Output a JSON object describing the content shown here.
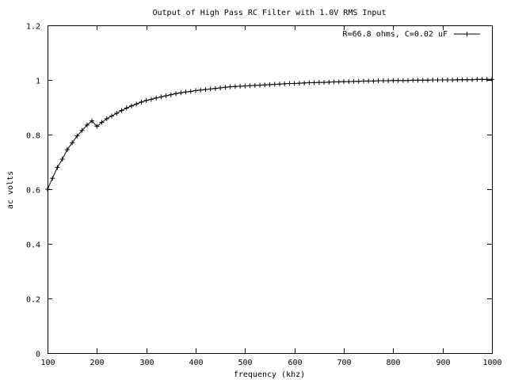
{
  "chart_data": {
    "type": "line",
    "title": "Output of High Pass RC Filter with 1.0V RMS Input",
    "xlabel": "frequency (khz)",
    "ylabel": "ac volts",
    "xlim": [
      100,
      1000
    ],
    "ylim": [
      0,
      1.2
    ],
    "grid": false,
    "legend": "top-right",
    "x_ticks": [
      "100",
      "200",
      "300",
      "400",
      "500",
      "600",
      "700",
      "800",
      "900",
      "1000"
    ],
    "y_ticks": [
      "0",
      "0.2",
      "0.4",
      "0.6",
      "0.8",
      "1",
      "1.2"
    ],
    "series": [
      {
        "name": "R=66.8 ohms, C=0.02 uF",
        "x": [
          100,
          110,
          120,
          130,
          140,
          150,
          160,
          170,
          180,
          190,
          200,
          210,
          220,
          230,
          240,
          250,
          260,
          270,
          280,
          290,
          300,
          310,
          320,
          330,
          340,
          350,
          360,
          370,
          380,
          390,
          400,
          410,
          420,
          430,
          440,
          450,
          460,
          470,
          480,
          490,
          500,
          510,
          520,
          530,
          540,
          550,
          560,
          570,
          580,
          590,
          600,
          610,
          620,
          630,
          640,
          650,
          660,
          670,
          680,
          690,
          700,
          710,
          720,
          730,
          740,
          750,
          760,
          770,
          780,
          790,
          800,
          810,
          820,
          830,
          840,
          850,
          860,
          870,
          880,
          890,
          900,
          910,
          920,
          930,
          940,
          950,
          960,
          970,
          980,
          990,
          1000
        ],
        "y": [
          0.6,
          0.64,
          0.68,
          0.71,
          0.745,
          0.77,
          0.795,
          0.815,
          0.835,
          0.85,
          0.83,
          0.845,
          0.858,
          0.868,
          0.878,
          0.888,
          0.897,
          0.905,
          0.912,
          0.919,
          0.925,
          0.929,
          0.934,
          0.938,
          0.942,
          0.946,
          0.95,
          0.953,
          0.956,
          0.958,
          0.961,
          0.963,
          0.965,
          0.967,
          0.969,
          0.971,
          0.973,
          0.975,
          0.976,
          0.977,
          0.978,
          0.979,
          0.98,
          0.981,
          0.982,
          0.983,
          0.984,
          0.985,
          0.986,
          0.987,
          0.987,
          0.988,
          0.989,
          0.99,
          0.99,
          0.991,
          0.991,
          0.992,
          0.993,
          0.993,
          0.994,
          0.994,
          0.995,
          0.995,
          0.996,
          0.996,
          0.996,
          0.997,
          0.997,
          0.997,
          0.998,
          0.998,
          0.998,
          0.998,
          0.999,
          0.999,
          0.999,
          0.999,
          1.0,
          1.0,
          1.0,
          1.0,
          1.0,
          1.001,
          1.001,
          1.001,
          1.001,
          1.002,
          1.002,
          1.002,
          1.002
        ]
      }
    ]
  }
}
